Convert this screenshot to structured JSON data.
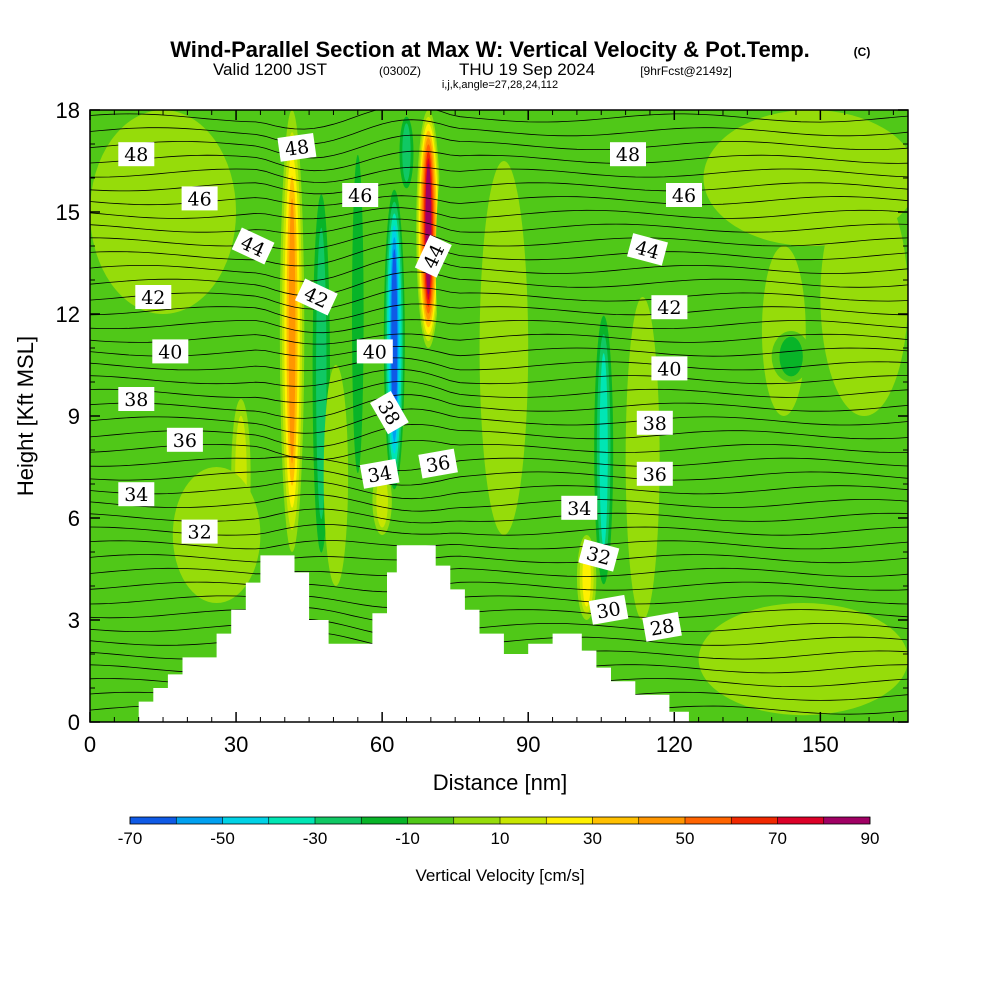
{
  "title": {
    "main": "Wind-Parallel Section at Max W: Vertical Velocity & Pot.Temp.",
    "copyright": "(C)",
    "line2_a": "Valid 1200 JST",
    "line2_b": "(0300Z)",
    "line2_c": "THU 19 Sep 2024",
    "line2_d": "[9hrFcst@2149z]",
    "line3": "i,j,k,angle=27,28,24,112"
  },
  "chart_data": {
    "type": "heatmap",
    "xlabel": "Distance [nm]",
    "ylabel": "Height [Kft MSL]",
    "xlim": [
      0,
      168
    ],
    "ylim": [
      0,
      18
    ],
    "x_ticks": [
      0,
      30,
      60,
      90,
      120,
      150
    ],
    "y_ticks": [
      0,
      3,
      6,
      9,
      12,
      15,
      18
    ],
    "colorbar": {
      "label": "Vertical Velocity [cm/s]",
      "tick_labels": [
        -70,
        -50,
        -30,
        -10,
        10,
        30,
        50,
        70,
        90
      ],
      "levels": [
        -70,
        -60,
        -50,
        -40,
        -30,
        -20,
        -10,
        0,
        10,
        20,
        30,
        40,
        50,
        60,
        70,
        80,
        90
      ],
      "colors": [
        "#0000e6",
        "#0f5ae6",
        "#00a0f0",
        "#00d2e6",
        "#00e6b4",
        "#10c864",
        "#08b428",
        "#50c818",
        "#96dc0a",
        "#c8e600",
        "#fff000",
        "#ffc000",
        "#ff9600",
        "#ff6400",
        "#f02800",
        "#dc0028",
        "#a00064",
        "#5a009a"
      ]
    },
    "background_color": "#50c818",
    "terrain": [
      [
        0,
        0
      ],
      [
        10,
        0
      ],
      [
        10,
        0.6
      ],
      [
        13,
        0.6
      ],
      [
        13,
        1.0
      ],
      [
        16,
        1.0
      ],
      [
        16,
        1.4
      ],
      [
        19,
        1.4
      ],
      [
        19,
        1.9
      ],
      [
        26,
        1.9
      ],
      [
        26,
        2.6
      ],
      [
        29,
        2.6
      ],
      [
        29,
        3.3
      ],
      [
        32,
        3.3
      ],
      [
        32,
        4.1
      ],
      [
        35,
        4.1
      ],
      [
        35,
        4.9
      ],
      [
        42,
        4.9
      ],
      [
        42,
        4.4
      ],
      [
        45,
        4.4
      ],
      [
        45,
        3.0
      ],
      [
        49,
        3.0
      ],
      [
        49,
        2.3
      ],
      [
        58,
        2.3
      ],
      [
        58,
        3.2
      ],
      [
        61,
        3.2
      ],
      [
        61,
        4.4
      ],
      [
        63,
        4.4
      ],
      [
        63,
        5.2
      ],
      [
        71,
        5.2
      ],
      [
        71,
        4.6
      ],
      [
        74,
        4.6
      ],
      [
        74,
        3.9
      ],
      [
        77,
        3.9
      ],
      [
        77,
        3.3
      ],
      [
        80,
        3.3
      ],
      [
        80,
        2.6
      ],
      [
        85,
        2.6
      ],
      [
        85,
        2.0
      ],
      [
        90,
        2.0
      ],
      [
        90,
        2.3
      ],
      [
        95,
        2.3
      ],
      [
        95,
        2.6
      ],
      [
        101,
        2.6
      ],
      [
        101,
        2.1
      ],
      [
        104,
        2.1
      ],
      [
        104,
        1.6
      ],
      [
        107,
        1.6
      ],
      [
        107,
        1.2
      ],
      [
        112,
        1.2
      ],
      [
        112,
        0.8
      ],
      [
        119,
        0.8
      ],
      [
        119,
        0.3
      ],
      [
        123,
        0.3
      ],
      [
        123,
        0
      ]
    ],
    "theta_contour_labels": [
      {
        "text": "48",
        "x": 9.5,
        "y": 16.7,
        "rot": 0
      },
      {
        "text": "46",
        "x": 22.5,
        "y": 15.4,
        "rot": 0
      },
      {
        "text": "44",
        "x": 33.5,
        "y": 14.0,
        "rot": 25
      },
      {
        "text": "42",
        "x": 13,
        "y": 12.5,
        "rot": 0
      },
      {
        "text": "40",
        "x": 16.5,
        "y": 10.9,
        "rot": 0
      },
      {
        "text": "38",
        "x": 9.5,
        "y": 9.5,
        "rot": 0
      },
      {
        "text": "36",
        "x": 19.5,
        "y": 8.3,
        "rot": 0
      },
      {
        "text": "34",
        "x": 9.5,
        "y": 6.7,
        "rot": 0
      },
      {
        "text": "32",
        "x": 22.5,
        "y": 5.6,
        "rot": 0
      },
      {
        "text": "48",
        "x": 42.5,
        "y": 16.9,
        "rot": -8
      },
      {
        "text": "42",
        "x": 46.5,
        "y": 12.5,
        "rot": 25
      },
      {
        "text": "46",
        "x": 55.5,
        "y": 15.5,
        "rot": 0
      },
      {
        "text": "40",
        "x": 58.5,
        "y": 10.9,
        "rot": 0
      },
      {
        "text": "38",
        "x": 61.5,
        "y": 9.1,
        "rot": 60
      },
      {
        "text": "34",
        "x": 59.5,
        "y": 7.3,
        "rot": -10
      },
      {
        "text": "44",
        "x": 70.5,
        "y": 13.7,
        "rot": -65
      },
      {
        "text": "36",
        "x": 71.5,
        "y": 7.6,
        "rot": -10
      },
      {
        "text": "48",
        "x": 110.5,
        "y": 16.7,
        "rot": 0
      },
      {
        "text": "46",
        "x": 122,
        "y": 15.5,
        "rot": 0
      },
      {
        "text": "44",
        "x": 114.5,
        "y": 13.9,
        "rot": 15
      },
      {
        "text": "42",
        "x": 119,
        "y": 12.2,
        "rot": 0
      },
      {
        "text": "40",
        "x": 119,
        "y": 10.4,
        "rot": 0
      },
      {
        "text": "38",
        "x": 116,
        "y": 8.8,
        "rot": 0
      },
      {
        "text": "36",
        "x": 116,
        "y": 7.3,
        "rot": 0
      },
      {
        "text": "34",
        "x": 100.5,
        "y": 6.3,
        "rot": 0
      },
      {
        "text": "32",
        "x": 104.5,
        "y": 4.9,
        "rot": 15
      },
      {
        "text": "30",
        "x": 106.5,
        "y": 3.3,
        "rot": -10
      },
      {
        "text": "28",
        "x": 117.5,
        "y": 2.8,
        "rot": -10
      }
    ],
    "vertical_velocity_features": [
      {
        "x": [
          29,
          33
        ],
        "y": [
          5.0,
          9.5
        ],
        "peak": 15
      },
      {
        "x": [
          33,
          38
        ],
        "y": [
          4.5,
          16.5
        ],
        "peak": -12
      },
      {
        "x": [
          39,
          44
        ],
        "y": [
          5.0,
          18.0
        ],
        "peak": 45
      },
      {
        "x": [
          45,
          50
        ],
        "y": [
          4.0,
          16.5
        ],
        "peak": -30
      },
      {
        "x": [
          48,
          53
        ],
        "y": [
          4.0,
          10.5
        ],
        "peak": 10
      },
      {
        "x": [
          53,
          57
        ],
        "y": [
          6.0,
          18.0
        ],
        "peak": -15
      },
      {
        "x": [
          60,
          65
        ],
        "y": [
          6.5,
          16.0
        ],
        "peak": -70
      },
      {
        "x": [
          63,
          67
        ],
        "y": [
          15.5,
          18.0
        ],
        "peak": -30
      },
      {
        "x": [
          67,
          72
        ],
        "y": [
          11.0,
          18.0
        ],
        "peak": 85
      },
      {
        "x": [
          58,
          62
        ],
        "y": [
          5.5,
          7.5
        ],
        "peak": 15
      },
      {
        "x": [
          71,
          80
        ],
        "y": [
          9.0,
          18.0
        ],
        "peak": -12
      },
      {
        "x": [
          80,
          90
        ],
        "y": [
          5.5,
          16.5
        ],
        "peak": 10
      },
      {
        "x": [
          100,
          104
        ],
        "y": [
          3.0,
          5.5
        ],
        "peak": 30
      },
      {
        "x": [
          103,
          108
        ],
        "y": [
          3.5,
          12.5
        ],
        "peak": -35
      },
      {
        "x": [
          110,
          117
        ],
        "y": [
          3.0,
          12.5
        ],
        "peak": 8
      },
      {
        "x": [
          126,
          170
        ],
        "y": [
          14.0,
          18.0
        ],
        "peak": 10
      },
      {
        "x": [
          138,
          147
        ],
        "y": [
          9.0,
          14.0
        ],
        "peak": 8
      },
      {
        "x": [
          140,
          148
        ],
        "y": [
          10.0,
          11.5
        ],
        "peak": -15
      },
      {
        "x": [
          150,
          168
        ],
        "y": [
          9.0,
          16.0
        ],
        "peak": 8
      },
      {
        "x": [
          0,
          30
        ],
        "y": [
          12.0,
          18.0
        ],
        "peak": 8
      },
      {
        "x": [
          17,
          35
        ],
        "y": [
          3.5,
          7.5
        ],
        "peak": 9
      },
      {
        "x": [
          22,
          25
        ],
        "y": [
          2.2,
          3.5
        ],
        "peak": -12
      },
      {
        "x": [
          125,
          168
        ],
        "y": [
          0.2,
          3.5
        ],
        "peak": 8
      }
    ]
  }
}
